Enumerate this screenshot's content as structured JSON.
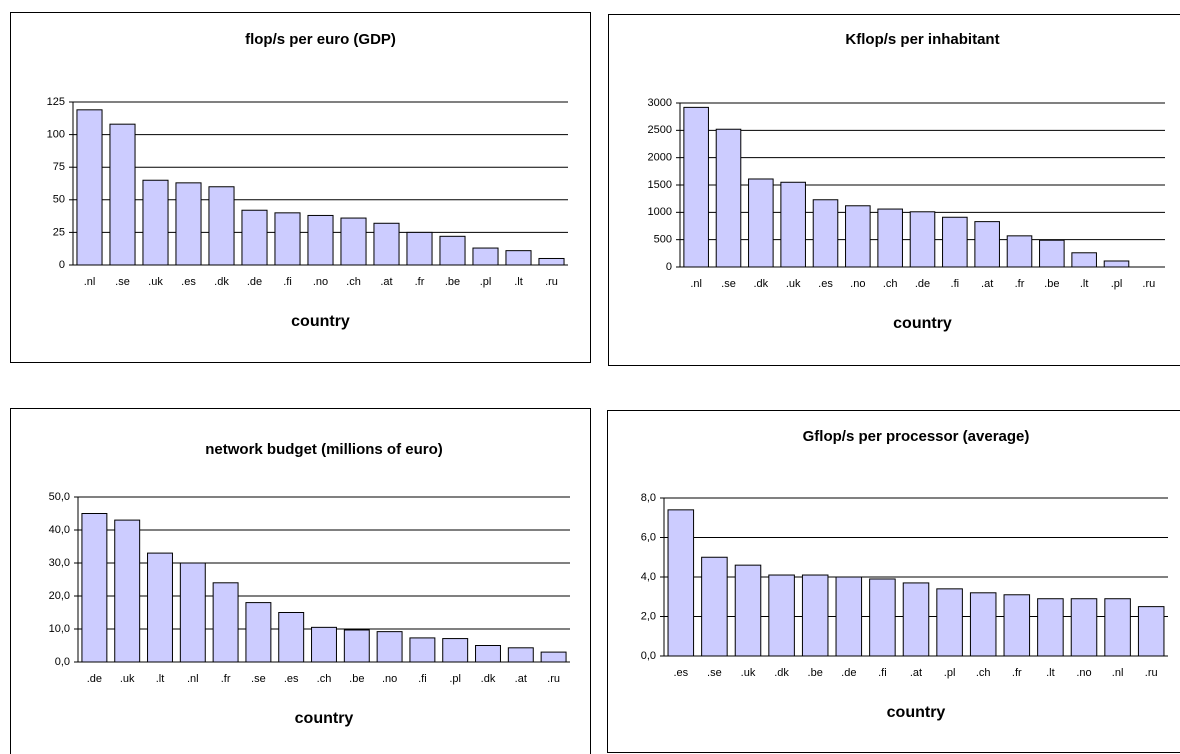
{
  "chart_data": [
    {
      "type": "bar",
      "title": "flop/s per euro (GDP)",
      "xlabel": "country",
      "color": "#ccccff",
      "grid": true,
      "categories": [
        ".nl",
        ".se",
        ".uk",
        ".es",
        ".dk",
        ".de",
        ".fi",
        ".no",
        ".ch",
        ".at",
        ".fr",
        ".be",
        ".pl",
        ".lt",
        ".ru"
      ],
      "values": [
        119,
        108,
        65,
        63,
        60,
        42,
        40,
        38,
        36,
        32,
        25,
        22,
        13,
        11,
        5
      ],
      "ylim": [
        0,
        125
      ],
      "yticks": [
        0,
        25,
        50,
        75,
        100,
        125
      ]
    },
    {
      "type": "bar",
      "title": "Kflop/s per inhabitant",
      "xlabel": "country",
      "color": "#ccccff",
      "grid": true,
      "categories": [
        ".nl",
        ".se",
        ".dk",
        ".uk",
        ".es",
        ".no",
        ".ch",
        ".de",
        ".fi",
        ".at",
        ".fr",
        ".be",
        ".lt",
        ".pl",
        ".ru"
      ],
      "values": [
        2920,
        2520,
        1610,
        1550,
        1230,
        1120,
        1060,
        1010,
        910,
        830,
        570,
        490,
        260,
        110,
        0
      ],
      "ylim": [
        0,
        3000
      ],
      "yticks": [
        0,
        500,
        1000,
        1500,
        2000,
        2500,
        3000
      ]
    },
    {
      "type": "bar",
      "title": "network budget (millions of euro)",
      "xlabel": "country",
      "color": "#ccccff",
      "grid": true,
      "categories": [
        ".de",
        ".uk",
        ".lt",
        ".nl",
        ".fr",
        ".se",
        ".es",
        ".ch",
        ".be",
        ".no",
        ".fi",
        ".pl",
        ".dk",
        ".at",
        ".ru"
      ],
      "values": [
        45,
        43,
        33,
        30,
        24,
        18,
        15,
        10.5,
        9.7,
        9.2,
        7.3,
        7.1,
        5,
        4.3,
        3
      ],
      "ylim": [
        0,
        50
      ],
      "yticks": [
        {
          "value": 0,
          "label": "0,0"
        },
        {
          "value": 10,
          "label": "10,0"
        },
        {
          "value": 20,
          "label": "20,0"
        },
        {
          "value": 30,
          "label": "30,0"
        },
        {
          "value": 40,
          "label": "40,0"
        },
        {
          "value": 50,
          "label": "50,0"
        }
      ]
    },
    {
      "type": "bar",
      "title": "Gflop/s per processor (average)",
      "xlabel": "country",
      "color": "#ccccff",
      "grid": true,
      "categories": [
        ".es",
        ".se",
        ".uk",
        ".dk",
        ".be",
        ".de",
        ".fi",
        ".at",
        ".pl",
        ".ch",
        ".fr",
        ".lt",
        ".no",
        ".nl",
        ".ru"
      ],
      "values": [
        7.4,
        5.0,
        4.6,
        4.1,
        4.1,
        4.0,
        3.9,
        3.7,
        3.4,
        3.2,
        3.1,
        2.9,
        2.9,
        2.9,
        2.5
      ],
      "ylim": [
        0,
        8
      ],
      "yticks": [
        {
          "value": 0,
          "label": "0,0"
        },
        {
          "value": 2,
          "label": "2,0"
        },
        {
          "value": 4,
          "label": "4,0"
        },
        {
          "value": 6,
          "label": "6,0"
        },
        {
          "value": 8,
          "label": "8,0"
        }
      ]
    }
  ]
}
